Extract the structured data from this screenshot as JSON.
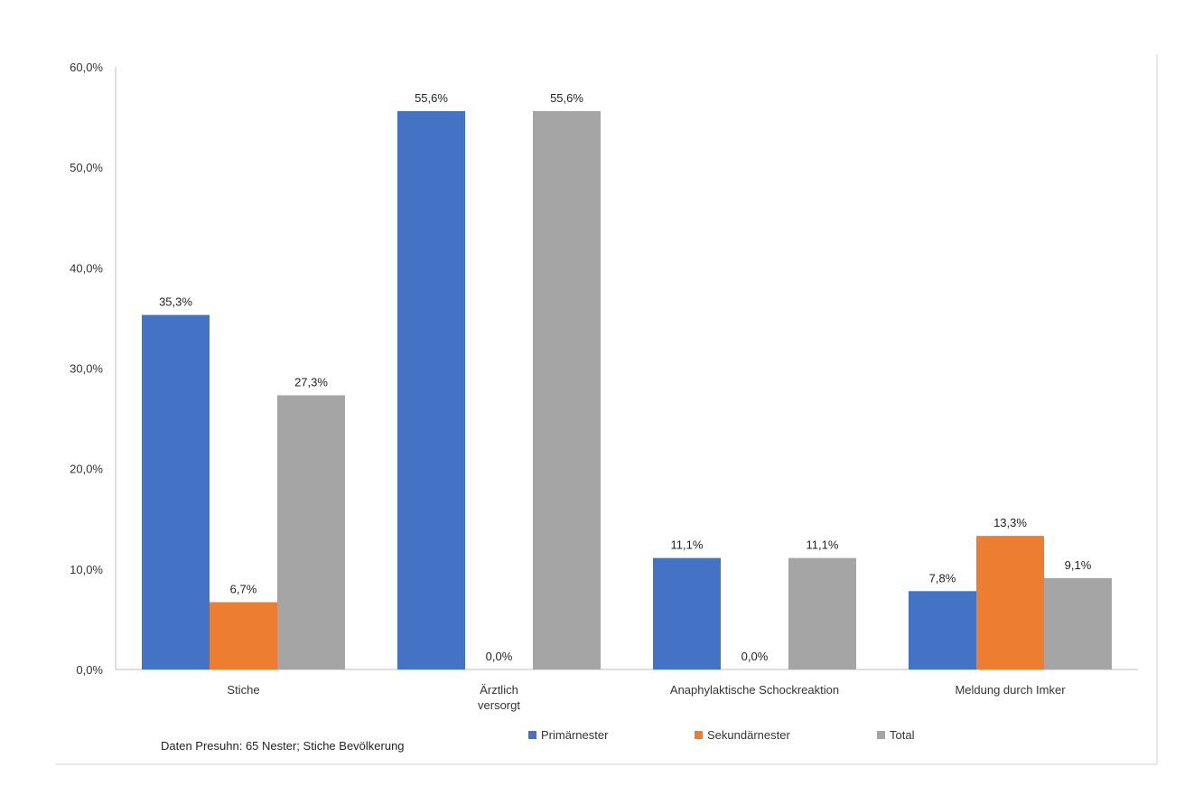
{
  "chart_data": {
    "type": "bar",
    "categories": [
      "Stiche",
      "Ärztlich versorgt",
      "Anaphylaktische Schockreaktion",
      "Meldung durch Imker"
    ],
    "series": [
      {
        "name": "Primärnester",
        "color": "#4472C4",
        "values": [
          35.3,
          55.6,
          11.1,
          7.8
        ],
        "labels": [
          "35,3%",
          "55,6%",
          "11,1%",
          "7,8%"
        ]
      },
      {
        "name": "Sekundärnester",
        "color": "#ED7D31",
        "values": [
          6.7,
          0.0,
          0.0,
          13.3
        ],
        "labels": [
          "6,7%",
          "0,0%",
          "0,0%",
          "13,3%"
        ]
      },
      {
        "name": "Total",
        "color": "#A5A5A5",
        "values": [
          27.3,
          55.6,
          11.1,
          9.1
        ],
        "labels": [
          "27,3%",
          "55,6%",
          "11,1%",
          "9,1%"
        ]
      }
    ],
    "ylim": [
      0,
      60
    ],
    "yticks": [
      "0,0%",
      "10,0%",
      "20,0%",
      "30,0%",
      "40,0%",
      "50,0%",
      "60,0%"
    ],
    "grid": false,
    "legend_position": "bottom",
    "note": "Daten Presuhn:  65 Nester; Stiche  Bevölkerung"
  }
}
